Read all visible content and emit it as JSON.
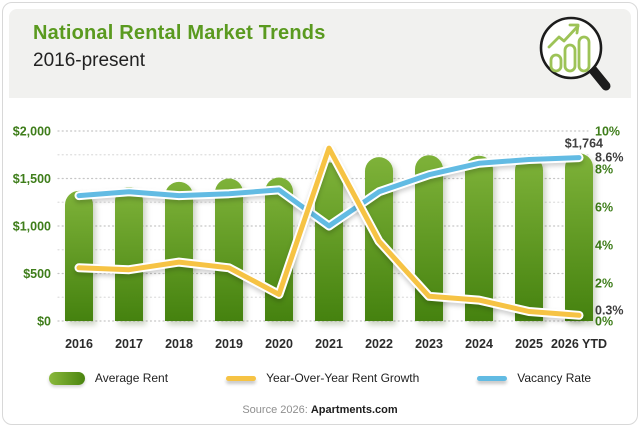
{
  "card": {
    "title": "National Rental Market Trends",
    "subtitle": "2016-present",
    "source_prefix": "Source 2026: ",
    "source_name": "Apartments.com"
  },
  "header_icon": "magnifying-glass-with-growth-chart",
  "legend": [
    {
      "label": "Average Rent",
      "swatch": "green-bar"
    },
    {
      "label": "Year-Over-Year Rent Growth",
      "swatch": "yellow-line"
    },
    {
      "label": "Vacancy Rate",
      "swatch": "blue-line"
    }
  ],
  "colors": {
    "title_green": "#5a9a1f",
    "axis_green": "#3e7d1a",
    "bar_top": "#7eb239",
    "bar_bottom": "#45820f",
    "growth_yellow": "#f6c344",
    "vacancy_blue": "#62bbe3",
    "annotation_gray": "#3f3f3f",
    "header_bg": "#f1f1ef"
  },
  "chart_data": {
    "type": "bar",
    "subtype": "combo-bar-plus-two-lines",
    "categories": [
      "2016",
      "2017",
      "2018",
      "2019",
      "2020",
      "2021",
      "2022",
      "2023",
      "2024",
      "2025",
      "2026 YTD"
    ],
    "series": [
      {
        "name": "Average Rent",
        "type": "bar",
        "axis": "left",
        "unit": "USD",
        "values": [
          1370,
          1410,
          1465,
          1500,
          1510,
          1670,
          1725,
          1745,
          1740,
          1735,
          1764
        ]
      },
      {
        "name": "Year-Over-Year Rent Growth",
        "type": "line",
        "axis": "right",
        "unit": "%",
        "values": [
          2.8,
          2.7,
          3.1,
          2.8,
          1.4,
          9.1,
          4.2,
          1.3,
          1.1,
          0.5,
          0.3
        ]
      },
      {
        "name": "Vacancy Rate",
        "type": "line",
        "axis": "right",
        "unit": "%",
        "values": [
          6.6,
          6.8,
          6.6,
          6.7,
          6.9,
          5.0,
          6.8,
          7.7,
          8.3,
          8.5,
          8.6
        ]
      }
    ],
    "left_axis": {
      "ticks": [
        "$2,000",
        "$1,500",
        "$1,000",
        "$500",
        "$0"
      ],
      "min": 0,
      "max": 2000
    },
    "right_axis": {
      "ticks": [
        "10%",
        "8%",
        "6%",
        "4%",
        "2%",
        "0%"
      ],
      "min": 0,
      "max": 10
    },
    "annotations": [
      {
        "series": "Average Rent",
        "text": "$1,764"
      },
      {
        "series": "Vacancy Rate",
        "text": "8.6%"
      },
      {
        "series": "Year-Over-Year Rent Growth",
        "text": "0.3%"
      }
    ],
    "grid": "dotted horizontal majors with dotted minors at half-steps",
    "legend_position": "bottom",
    "title": "National Rental Market Trends",
    "subtitle": "2016-present"
  }
}
